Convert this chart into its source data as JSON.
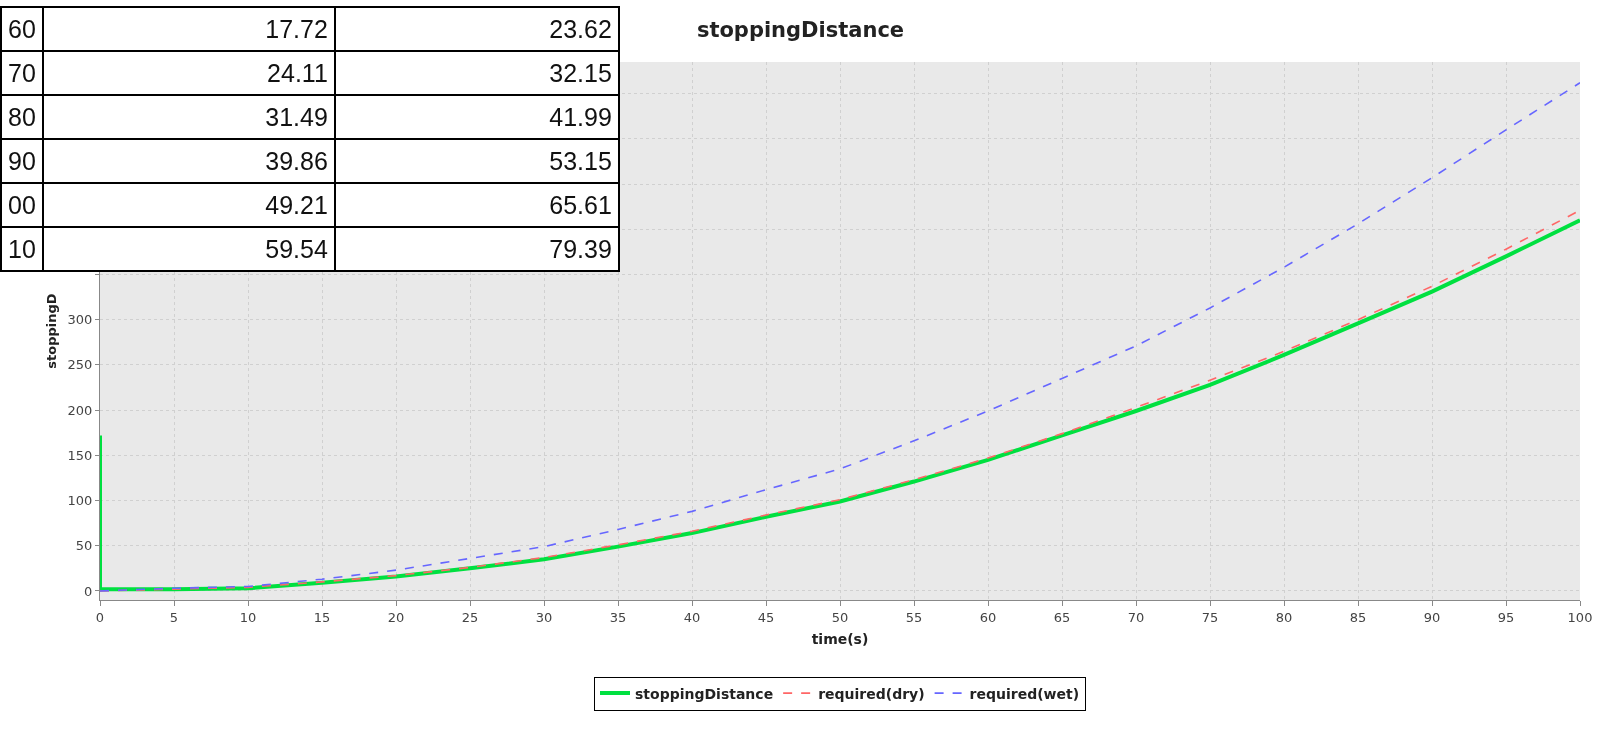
{
  "chart_data": {
    "type": "line",
    "title": "stoppingDistance",
    "xlabel": "time(s)",
    "ylabel": "stoppingD",
    "annotations": [
      "60",
      "17.72",
      "23.62",
      "70",
      "24.11",
      "32.15",
      "80",
      "31.49",
      "41.99",
      "90",
      "39.86",
      "53.15",
      "00",
      "49.21",
      "65.61",
      "10",
      "59.54",
      "79.39"
    ],
    "series": [
      {
        "name": "stoppingDistance",
        "color": "#00e040",
        "line_style": "solid",
        "x": [
          0,
          0,
          5,
          10,
          15,
          20,
          25,
          30,
          35,
          40,
          45,
          50,
          55,
          60,
          65,
          70,
          75,
          80,
          85,
          90,
          95,
          100
        ],
        "values": [
          172,
          2,
          2,
          3,
          9,
          16,
          25,
          35,
          49,
          64,
          82,
          99,
          121,
          145,
          172,
          199,
          228,
          261,
          296,
          331,
          370,
          410
        ]
      },
      {
        "name": "required(dry)",
        "color": "#ff6666",
        "line_style": "dashed",
        "x": [
          0,
          5,
          10,
          15,
          20,
          25,
          30,
          35,
          40,
          45,
          50,
          55,
          60,
          65,
          70,
          75,
          80,
          85,
          90,
          95,
          100
        ],
        "values": [
          0,
          2,
          4,
          10,
          17,
          26,
          37,
          51,
          66,
          84,
          101,
          123,
          147,
          174,
          203,
          233,
          265,
          300,
          337,
          378,
          421
        ]
      },
      {
        "name": "required(wet)",
        "color": "#6666ff",
        "line_style": "dashed",
        "x": [
          0,
          5,
          10,
          15,
          20,
          25,
          30,
          35,
          40,
          45,
          50,
          55,
          60,
          65,
          70,
          75,
          80,
          85,
          90,
          95,
          100
        ],
        "values": [
          0,
          3,
          5,
          13,
          23,
          36,
          49,
          68,
          88,
          112,
          135,
          166,
          199,
          235,
          271,
          313,
          358,
          406,
          457,
          510,
          562
        ]
      }
    ],
    "xlim": [
      0,
      100
    ],
    "xticks": [
      0,
      5,
      10,
      15,
      20,
      25,
      30,
      35,
      40,
      45,
      50,
      55,
      60,
      65,
      70,
      75,
      80,
      85,
      90,
      95,
      100
    ],
    "ylim": [
      -10,
      585
    ],
    "yticks": [
      0,
      50,
      100,
      150,
      200,
      250,
      300,
      {
        "value": 350,
        "label": null
      },
      {
        "value": 400,
        "label": null
      },
      {
        "value": 450,
        "label": null
      },
      {
        "value": 500,
        "label": null
      },
      {
        "value": 550,
        "label": null
      }
    ],
    "grid": true,
    "legend": "bottom",
    "marker": "none"
  }
}
